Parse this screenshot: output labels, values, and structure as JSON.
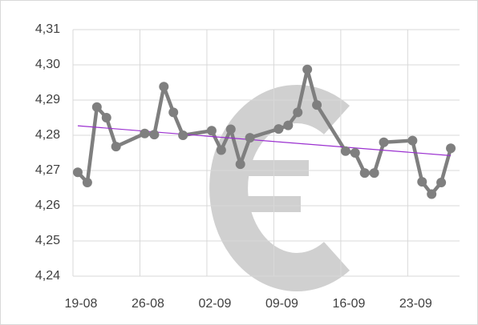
{
  "chart_data": {
    "type": "line",
    "x": [
      "19-08",
      "20-08",
      "21-08",
      "22-08",
      "23-08",
      "26-08",
      "27-08",
      "28-08",
      "29-08",
      "30-08",
      "02-09",
      "03-09",
      "04-09",
      "05-09",
      "06-09",
      "09-09",
      "10-09",
      "11-09",
      "12-09",
      "13-09",
      "16-09",
      "17-09",
      "18-09",
      "19-09",
      "20-09",
      "23-09",
      "24-09",
      "25-09",
      "26-09",
      "27-09"
    ],
    "series": [
      {
        "color": "#7f7f7f",
        "values": [
          4.2695,
          4.2666,
          4.288,
          4.285,
          4.2768,
          4.2805,
          4.2802,
          4.2938,
          4.2865,
          4.28,
          4.2813,
          4.2758,
          4.2817,
          4.2718,
          4.2793,
          4.2818,
          4.2828,
          4.2865,
          4.2987,
          4.2886,
          4.2755,
          4.275,
          4.2693,
          4.2693,
          4.278,
          4.2785,
          4.2668,
          4.2633,
          4.2666,
          4.2763
        ]
      }
    ],
    "trendline": {
      "kind": "linear",
      "color": "#9b30d0"
    },
    "xlim": [
      "19-08",
      "28-09"
    ],
    "xticks": [
      "19-08",
      "26-08",
      "02-09",
      "09-09",
      "16-09",
      "23-09"
    ],
    "ylim": [
      4.24,
      4.31
    ],
    "yticks": [
      {
        "value": 4.24,
        "label": "4,24"
      },
      {
        "value": 4.25,
        "label": "4,25"
      },
      {
        "value": 4.26,
        "label": "4,26"
      },
      {
        "value": 4.27,
        "label": "4,27"
      },
      {
        "value": 4.28,
        "label": "4,28"
      },
      {
        "value": 4.29,
        "label": "4,29"
      },
      {
        "value": 4.3,
        "label": "4,30"
      },
      {
        "value": 4.31,
        "label": "4,31"
      }
    ],
    "grid": true
  }
}
